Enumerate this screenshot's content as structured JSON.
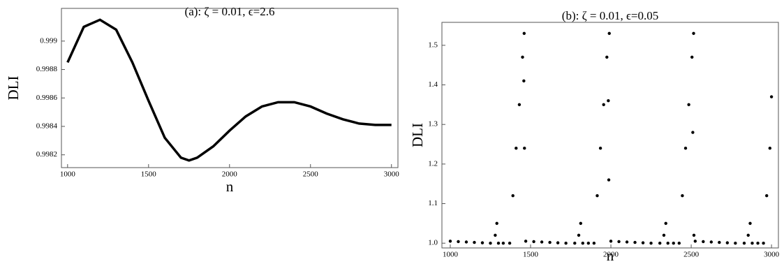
{
  "chart_data": [
    {
      "type": "line",
      "title": "(a): ζ = 0.01, ϵ=2.6",
      "x_label": "n",
      "y_label": "DLI",
      "x": [
        1000,
        1100,
        1200,
        1300,
        1400,
        1500,
        1600,
        1700,
        1750,
        1800,
        1900,
        2000,
        2100,
        2200,
        2300,
        2400,
        2500,
        2600,
        2700,
        2800,
        2900,
        3000
      ],
      "values": [
        0.99885,
        0.9991,
        0.99915,
        0.99908,
        0.99885,
        0.99858,
        0.99832,
        0.99818,
        0.99816,
        0.99818,
        0.99826,
        0.99837,
        0.99847,
        0.99854,
        0.99857,
        0.99857,
        0.99854,
        0.99849,
        0.99845,
        0.99842,
        0.99841,
        0.99841
      ],
      "color": "#000000",
      "xlim": [
        962,
        3040
      ],
      "ylim": [
        0.99811,
        0.99923
      ],
      "xticks": [
        1000,
        1500,
        2000,
        2500,
        3000
      ],
      "yticks": [
        0.9982,
        0.9984,
        0.9986,
        0.9988,
        0.999
      ]
    },
    {
      "type": "scatter",
      "title": "(b): ζ = 0.01, ϵ=0.05",
      "x_label": "n",
      "y_label": "DLI",
      "x": [
        1000,
        1050,
        1100,
        1150,
        1200,
        1250,
        1280,
        1290,
        1300,
        1330,
        1370,
        1390,
        1410,
        1430,
        1450,
        1460,
        1458,
        1462,
        1470,
        1520,
        1570,
        1620,
        1670,
        1720,
        1775,
        1800,
        1812,
        1825,
        1860,
        1895,
        1915,
        1935,
        1955,
        1975,
        1990,
        1984,
        1987,
        2000,
        2050,
        2100,
        2150,
        2200,
        2250,
        2305,
        2330,
        2342,
        2355,
        2390,
        2425,
        2445,
        2465,
        2485,
        2505,
        2515,
        2510,
        2517,
        2525,
        2575,
        2625,
        2675,
        2725,
        2775,
        2830,
        2855,
        2867,
        2880,
        2915,
        2950,
        2970,
        2990,
        3000
      ],
      "values": [
        1.005,
        1.004,
        1.003,
        1.002,
        1.001,
        1.0,
        1.02,
        1.05,
        1.0,
        1.0,
        1.0,
        1.12,
        1.24,
        1.35,
        1.47,
        1.53,
        1.41,
        1.24,
        1.005,
        1.004,
        1.003,
        1.002,
        1.001,
        1.0,
        1.0,
        1.02,
        1.05,
        1.0,
        1.0,
        1.0,
        1.12,
        1.24,
        1.35,
        1.47,
        1.53,
        1.36,
        1.16,
        1.005,
        1.004,
        1.003,
        1.002,
        1.001,
        1.0,
        1.0,
        1.02,
        1.05,
        1.0,
        1.0,
        1.0,
        1.12,
        1.24,
        1.35,
        1.47,
        1.53,
        1.28,
        1.02,
        1.005,
        1.004,
        1.003,
        1.002,
        1.001,
        1.0,
        1.0,
        1.02,
        1.05,
        1.0,
        1.0,
        1.0,
        1.12,
        1.24,
        1.37
      ],
      "color": "#000000",
      "xlim": [
        948,
        3043
      ],
      "ylim": [
        0.988,
        1.558
      ],
      "xticks": [
        1000,
        1500,
        2000,
        2500,
        3000
      ],
      "yticks": [
        {
          "value": 1,
          "label": "1.0"
        },
        1.1,
        1.2,
        1.3,
        1.4,
        1.5
      ]
    }
  ]
}
